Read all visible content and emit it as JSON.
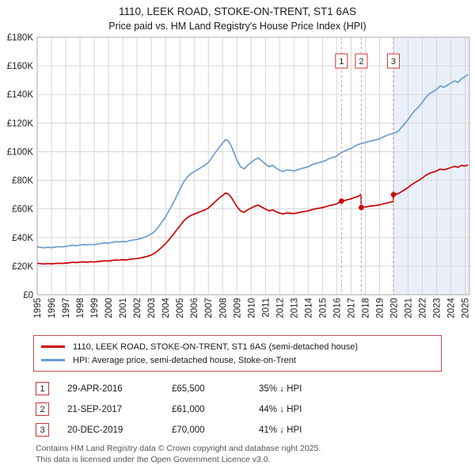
{
  "header": {
    "title": "1110, LEEK ROAD, STOKE-ON-TRENT, ST1 6AS",
    "subtitle": "Price paid vs. HM Land Registry's House Price Index (HPI)"
  },
  "transactions": [
    {
      "index": "1",
      "date": "29-APR-2016",
      "price": "£65,500",
      "delta": "35% ↓ HPI"
    },
    {
      "index": "2",
      "date": "21-SEP-2017",
      "price": "£61,000",
      "delta": "44% ↓ HPI"
    },
    {
      "index": "3",
      "date": "20-DEC-2019",
      "price": "£70,000",
      "delta": "41% ↓ HPI"
    }
  ],
  "footer": {
    "line1": "Contains HM Land Registry data © Crown copyright and database right 2025.",
    "line2": "This data is licensed under the Open Government Licence v3.0."
  },
  "chart_data": {
    "type": "line",
    "title": "1110, LEEK ROAD, STOKE-ON-TRENT, ST1 6AS",
    "subtitle": "Price paid vs. HM Land Registry's House Price Index (HPI)",
    "x_range": [
      1995,
      2025.3
    ],
    "y_range": [
      0,
      180
    ],
    "y_ticks": [
      0,
      20,
      40,
      60,
      80,
      100,
      120,
      140,
      160,
      180
    ],
    "y_tick_labels": [
      "£0",
      "£20K",
      "£40K",
      "£60K",
      "£80K",
      "£100K",
      "£120K",
      "£140K",
      "£160K",
      "£180K"
    ],
    "x_ticks": [
      1995,
      1996,
      1997,
      1998,
      1999,
      2000,
      2001,
      2002,
      2003,
      2004,
      2005,
      2006,
      2007,
      2008,
      2009,
      2010,
      2011,
      2012,
      2013,
      2014,
      2015,
      2016,
      2017,
      2018,
      2019,
      2020,
      2021,
      2022,
      2023,
      2024,
      2025
    ],
    "grid": true,
    "grid_color": "#d6d6d6",
    "border_color": "#aaaaaa",
    "shaded_region": {
      "from": 2019.97,
      "to": 2025.3,
      "color": "#eaf0f9"
    },
    "sale_line_color": "#e89090",
    "sale_dot_color": "#cc0000",
    "sale_box_border": "#cc3333",
    "legend_position": "bottom-box",
    "series": [
      {
        "name": "1110, LEEK ROAD, STOKE-ON-TRENT, ST1 6AS (semi-detached house)",
        "color": "#cc0000",
        "width": 1.7,
        "points": [
          [
            1995,
            22.0
          ],
          [
            1995.25,
            21.7
          ],
          [
            1995.5,
            21.5
          ],
          [
            1995.75,
            21.8
          ],
          [
            1996,
            21.6
          ],
          [
            1996.25,
            21.8
          ],
          [
            1996.5,
            22.0
          ],
          [
            1996.75,
            21.9
          ],
          [
            1997,
            22.1
          ],
          [
            1997.25,
            22.4
          ],
          [
            1997.5,
            22.7
          ],
          [
            1997.75,
            22.5
          ],
          [
            1998,
            22.8
          ],
          [
            1998.25,
            23.0
          ],
          [
            1998.5,
            22.7
          ],
          [
            1998.75,
            23.1
          ],
          [
            1999,
            22.9
          ],
          [
            1999.25,
            23.2
          ],
          [
            1999.5,
            23.5
          ],
          [
            1999.75,
            23.7
          ],
          [
            2000,
            23.6
          ],
          [
            2000.25,
            24.0
          ],
          [
            2000.5,
            24.3
          ],
          [
            2000.75,
            24.2
          ],
          [
            2001,
            24.4
          ],
          [
            2001.25,
            24.3
          ],
          [
            2001.5,
            24.8
          ],
          [
            2001.75,
            25.1
          ],
          [
            2002,
            25.3
          ],
          [
            2002.25,
            25.7
          ],
          [
            2002.5,
            26.3
          ],
          [
            2002.75,
            27.0
          ],
          [
            2003,
            27.8
          ],
          [
            2003.25,
            29.1
          ],
          [
            2003.5,
            31.1
          ],
          [
            2003.75,
            33.4
          ],
          [
            2004,
            35.7
          ],
          [
            2004.25,
            38.6
          ],
          [
            2004.5,
            41.6
          ],
          [
            2004.75,
            44.9
          ],
          [
            2005,
            48.1
          ],
          [
            2005.25,
            51.4
          ],
          [
            2005.5,
            53.7
          ],
          [
            2005.75,
            55.3
          ],
          [
            2006,
            56.3
          ],
          [
            2006.25,
            57.3
          ],
          [
            2006.5,
            58.3
          ],
          [
            2006.75,
            59.3
          ],
          [
            2007,
            60.6
          ],
          [
            2007.25,
            62.9
          ],
          [
            2007.5,
            65.2
          ],
          [
            2007.75,
            67.5
          ],
          [
            2008,
            69.4
          ],
          [
            2008.2,
            71.1
          ],
          [
            2008.4,
            70.4
          ],
          [
            2008.6,
            68.1
          ],
          [
            2008.8,
            64.8
          ],
          [
            2009,
            61.6
          ],
          [
            2009.25,
            58.6
          ],
          [
            2009.5,
            57.6
          ],
          [
            2009.75,
            59.3
          ],
          [
            2010,
            60.6
          ],
          [
            2010.25,
            61.9
          ],
          [
            2010.5,
            62.6
          ],
          [
            2010.75,
            61.2
          ],
          [
            2011,
            59.9
          ],
          [
            2011.25,
            58.6
          ],
          [
            2011.5,
            59.3
          ],
          [
            2011.75,
            58.0
          ],
          [
            2012,
            57.0
          ],
          [
            2012.25,
            56.5
          ],
          [
            2012.5,
            57.2
          ],
          [
            2012.75,
            57.0
          ],
          [
            2013,
            56.7
          ],
          [
            2013.25,
            57.2
          ],
          [
            2013.5,
            57.8
          ],
          [
            2013.75,
            58.2
          ],
          [
            2014,
            58.6
          ],
          [
            2014.25,
            59.5
          ],
          [
            2014.5,
            60.1
          ],
          [
            2014.75,
            60.5
          ],
          [
            2015,
            60.9
          ],
          [
            2015.25,
            61.6
          ],
          [
            2015.5,
            62.4
          ],
          [
            2015.75,
            62.9
          ],
          [
            2016,
            63.5
          ],
          [
            2016.33,
            65.5
          ],
          [
            2016.5,
            65.7
          ],
          [
            2016.75,
            66.4
          ],
          [
            2017,
            67.0
          ],
          [
            2017.25,
            68.0
          ],
          [
            2017.5,
            68.8
          ],
          [
            2017.7,
            70.2
          ],
          [
            2017.72,
            61.0
          ],
          [
            2017.75,
            61.1
          ],
          [
            2018,
            61.3
          ],
          [
            2018.25,
            61.8
          ],
          [
            2018.5,
            62.1
          ],
          [
            2018.75,
            62.4
          ],
          [
            2019,
            62.8
          ],
          [
            2019.25,
            63.5
          ],
          [
            2019.5,
            64.1
          ],
          [
            2019.75,
            64.7
          ],
          [
            2019.95,
            65.0
          ],
          [
            2019.97,
            70.0
          ],
          [
            2020.25,
            70.4
          ],
          [
            2020.5,
            71.8
          ],
          [
            2020.75,
            73.4
          ],
          [
            2021,
            75.0
          ],
          [
            2021.25,
            76.9
          ],
          [
            2021.5,
            78.6
          ],
          [
            2021.75,
            79.9
          ],
          [
            2022,
            81.6
          ],
          [
            2022.25,
            83.5
          ],
          [
            2022.5,
            84.9
          ],
          [
            2022.75,
            85.7
          ],
          [
            2023,
            86.5
          ],
          [
            2023.25,
            87.9
          ],
          [
            2023.5,
            87.3
          ],
          [
            2023.75,
            88.1
          ],
          [
            2024,
            88.9
          ],
          [
            2024.25,
            89.7
          ],
          [
            2024.5,
            89.1
          ],
          [
            2024.75,
            90.4
          ],
          [
            2025,
            90.0
          ],
          [
            2025.2,
            90.8
          ]
        ]
      },
      {
        "name": "HPI: Average price, semi-detached house, Stoke-on-Trent",
        "color": "#6d9cd1",
        "width": 1.7,
        "points": [
          [
            1995,
            33.5
          ],
          [
            1995.25,
            33.1
          ],
          [
            1995.5,
            32.8
          ],
          [
            1995.75,
            33.2
          ],
          [
            1996,
            32.9
          ],
          [
            1996.25,
            33.3
          ],
          [
            1996.5,
            33.6
          ],
          [
            1996.75,
            33.4
          ],
          [
            1997,
            33.8
          ],
          [
            1997.25,
            34.2
          ],
          [
            1997.5,
            34.6
          ],
          [
            1997.75,
            34.3
          ],
          [
            1998,
            34.8
          ],
          [
            1998.25,
            35.1
          ],
          [
            1998.5,
            34.7
          ],
          [
            1998.75,
            35.2
          ],
          [
            1999,
            35.0
          ],
          [
            1999.25,
            35.4
          ],
          [
            1999.5,
            35.9
          ],
          [
            1999.75,
            36.2
          ],
          [
            2000,
            36.0
          ],
          [
            2000.25,
            36.6
          ],
          [
            2000.5,
            37.1
          ],
          [
            2000.75,
            36.9
          ],
          [
            2001,
            37.3
          ],
          [
            2001.25,
            37.1
          ],
          [
            2001.5,
            37.9
          ],
          [
            2001.75,
            38.3
          ],
          [
            2002,
            38.6
          ],
          [
            2002.25,
            39.3
          ],
          [
            2002.5,
            40.1
          ],
          [
            2002.75,
            41.2
          ],
          [
            2003,
            42.5
          ],
          [
            2003.25,
            44.5
          ],
          [
            2003.5,
            47.5
          ],
          [
            2003.75,
            51.0
          ],
          [
            2004,
            54.5
          ],
          [
            2004.25,
            59.0
          ],
          [
            2004.5,
            63.5
          ],
          [
            2004.75,
            68.5
          ],
          [
            2005,
            73.5
          ],
          [
            2005.25,
            78.5
          ],
          [
            2005.5,
            82.0
          ],
          [
            2005.75,
            84.5
          ],
          [
            2006,
            86.0
          ],
          [
            2006.25,
            87.5
          ],
          [
            2006.5,
            89.0
          ],
          [
            2006.75,
            90.5
          ],
          [
            2007,
            92.5
          ],
          [
            2007.25,
            96.0
          ],
          [
            2007.5,
            99.5
          ],
          [
            2007.75,
            103.0
          ],
          [
            2008,
            106.0
          ],
          [
            2008.2,
            108.5
          ],
          [
            2008.4,
            107.5
          ],
          [
            2008.6,
            104.0
          ],
          [
            2008.8,
            99.0
          ],
          [
            2009,
            94.0
          ],
          [
            2009.25,
            89.5
          ],
          [
            2009.5,
            88.0
          ],
          [
            2009.75,
            90.5
          ],
          [
            2010,
            92.5
          ],
          [
            2010.25,
            94.5
          ],
          [
            2010.5,
            95.5
          ],
          [
            2010.75,
            93.5
          ],
          [
            2011,
            91.5
          ],
          [
            2011.25,
            89.5
          ],
          [
            2011.5,
            90.5
          ],
          [
            2011.75,
            88.5
          ],
          [
            2012,
            87.0
          ],
          [
            2012.25,
            86.2
          ],
          [
            2012.5,
            87.3
          ],
          [
            2012.75,
            87.0
          ],
          [
            2013,
            86.5
          ],
          [
            2013.25,
            87.4
          ],
          [
            2013.5,
            88.2
          ],
          [
            2013.75,
            88.8
          ],
          [
            2014,
            89.5
          ],
          [
            2014.25,
            90.8
          ],
          [
            2014.5,
            91.8
          ],
          [
            2014.75,
            92.3
          ],
          [
            2015,
            93.0
          ],
          [
            2015.25,
            94.0
          ],
          [
            2015.5,
            95.3
          ],
          [
            2015.75,
            96.0
          ],
          [
            2016,
            97.0
          ],
          [
            2016.25,
            98.8
          ],
          [
            2016.5,
            100.3
          ],
          [
            2016.75,
            101.3
          ],
          [
            2017,
            102.3
          ],
          [
            2017.25,
            103.8
          ],
          [
            2017.5,
            105.0
          ],
          [
            2017.75,
            105.8
          ],
          [
            2018,
            106.3
          ],
          [
            2018.25,
            107.2
          ],
          [
            2018.5,
            107.8
          ],
          [
            2018.75,
            108.3
          ],
          [
            2019,
            109.0
          ],
          [
            2019.25,
            110.3
          ],
          [
            2019.5,
            111.3
          ],
          [
            2019.75,
            112.3
          ],
          [
            2020,
            113.0
          ],
          [
            2020.25,
            113.8
          ],
          [
            2020.5,
            116.5
          ],
          [
            2020.75,
            119.5
          ],
          [
            2021,
            122.5
          ],
          [
            2021.25,
            126.0
          ],
          [
            2021.5,
            129.0
          ],
          [
            2021.75,
            131.5
          ],
          [
            2022,
            134.5
          ],
          [
            2022.25,
            138.0
          ],
          [
            2022.5,
            140.5
          ],
          [
            2022.75,
            142.0
          ],
          [
            2023,
            143.5
          ],
          [
            2023.25,
            146.0
          ],
          [
            2023.5,
            145.0
          ],
          [
            2023.75,
            146.5
          ],
          [
            2024,
            148.0
          ],
          [
            2024.25,
            149.5
          ],
          [
            2024.5,
            148.5
          ],
          [
            2024.75,
            151.0
          ],
          [
            2025,
            152.5
          ],
          [
            2025.2,
            154.0
          ]
        ]
      }
    ],
    "sales": [
      {
        "label": "1",
        "x": 2016.33,
        "y": 65.5
      },
      {
        "label": "2",
        "x": 2017.72,
        "y": 61.0
      },
      {
        "label": "3",
        "x": 2019.97,
        "y": 70.0
      }
    ]
  }
}
